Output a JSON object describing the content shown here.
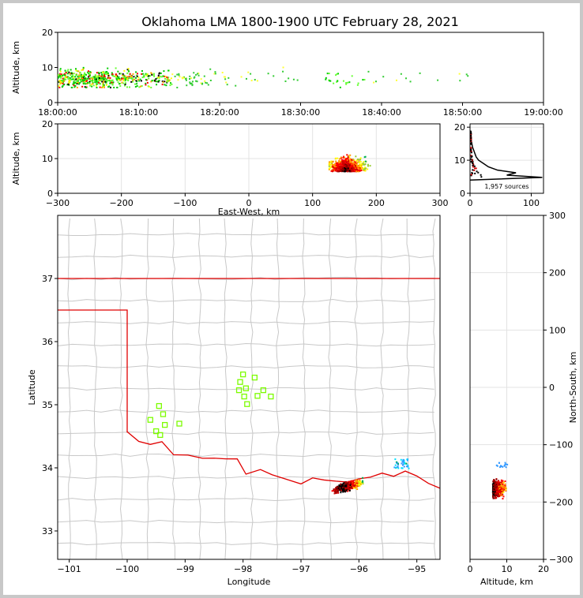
{
  "title": "Oklahoma LMA 1800-1900 UTC February 28, 2021",
  "chart_data": [
    {
      "panel": "time-altitude",
      "type": "scatter",
      "xlabel": "",
      "ylabel": "Altitude, km",
      "xticks": [
        "18:00:00",
        "18:10:00",
        "18:20:00",
        "18:30:00",
        "18:40:00",
        "18:50:00",
        "19:00:00"
      ],
      "xlim_minutes": [
        0,
        60
      ],
      "ylim": [
        0,
        20
      ],
      "yticks": [
        "0",
        "10",
        "20"
      ],
      "colormap": "time (green early → yellow → red)"
    },
    {
      "panel": "east-west-altitude",
      "type": "scatter",
      "xlabel": "East-West, km",
      "ylabel": "Altitude, km",
      "xlim": [
        -300,
        300
      ],
      "xticks": [
        "−300",
        "−200",
        "−100",
        "0",
        "100",
        "200",
        "300"
      ],
      "ylim": [
        0,
        20
      ],
      "yticks": [
        "0",
        "10",
        "20"
      ]
    },
    {
      "panel": "altitude-histogram",
      "type": "line",
      "xlim": [
        0,
        120
      ],
      "xticks": [
        "0",
        "100"
      ],
      "ylim": [
        0,
        21
      ],
      "yticks": [
        "0",
        "10",
        "20"
      ],
      "annotation": "1,957 sources",
      "profile": [
        [
          0,
          4
        ],
        [
          118,
          4.8
        ],
        [
          60,
          5.5
        ],
        [
          75,
          6.2
        ],
        [
          45,
          7
        ],
        [
          30,
          8
        ],
        [
          22,
          9
        ],
        [
          14,
          10
        ],
        [
          10,
          11
        ],
        [
          8,
          12
        ],
        [
          6,
          13
        ],
        [
          4,
          14
        ],
        [
          3,
          15
        ],
        [
          2,
          16
        ],
        [
          2,
          17
        ],
        [
          1,
          18
        ],
        [
          1,
          19
        ]
      ]
    },
    {
      "panel": "plan-view",
      "type": "scatter",
      "xlabel": "Longitude",
      "ylabel": "Latitude",
      "xlim": [
        -101.2,
        -94.6
      ],
      "ylim": [
        32.55,
        38.0
      ],
      "xticks": [
        "−101",
        "−100",
        "−99",
        "−98",
        "−97",
        "−96",
        "−95"
      ],
      "yticks": [
        "33",
        "34",
        "35",
        "36",
        "37"
      ],
      "stations": [
        [
          -98.0,
          35.48
        ],
        [
          -97.8,
          35.43
        ],
        [
          -98.05,
          35.36
        ],
        [
          -97.95,
          35.26
        ],
        [
          -98.07,
          35.23
        ],
        [
          -97.65,
          35.23
        ],
        [
          -97.98,
          35.13
        ],
        [
          -97.75,
          35.14
        ],
        [
          -97.52,
          35.13
        ],
        [
          -97.93,
          35.01
        ],
        [
          -99.45,
          34.98
        ],
        [
          -99.38,
          34.85
        ],
        [
          -99.6,
          34.76
        ],
        [
          -99.35,
          34.68
        ],
        [
          -99.1,
          34.7
        ],
        [
          -99.5,
          34.58
        ],
        [
          -99.43,
          34.52
        ]
      ]
    },
    {
      "panel": "altitude-north-south",
      "type": "scatter",
      "xlabel": "Altitude, km",
      "ylabel": "North-South, km",
      "xlim": [
        0,
        20
      ],
      "xticks": [
        "0",
        "10",
        "20"
      ],
      "ylim": [
        -300,
        300
      ],
      "yticks": [
        "−300",
        "−200",
        "−100",
        "0",
        "100",
        "200",
        "300"
      ]
    }
  ]
}
